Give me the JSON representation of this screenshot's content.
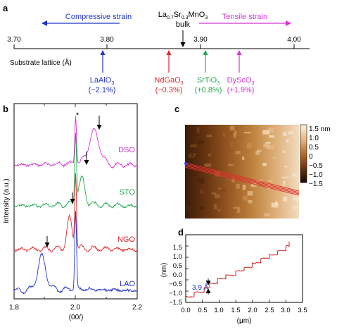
{
  "panels": {
    "a": {
      "letter": "a",
      "compressive_label": "Compressive strain",
      "tensile_label": "Tensile strain",
      "bulk_formula_main": "La",
      "bulk_formula_sub1": "0.7",
      "bulk_formula_mid": "Sr",
      "bulk_formula_sub2": "0.3",
      "bulk_formula_end": "MnO",
      "bulk_formula_sub3": "3",
      "bulk_label": "bulk",
      "axis_label": "Substrate lattice (Å)",
      "ticks": [
        "3.70",
        "3.80",
        "3.90",
        "4.00"
      ],
      "substrates": [
        {
          "name_main": "LaAlO",
          "name_sub": "3",
          "strain": "(−2.1%)",
          "color": "#2233cc"
        },
        {
          "name_main": "NdGaO",
          "name_sub": "3",
          "strain": "(−0.3%)",
          "color": "#e0262a"
        },
        {
          "name_main": "SrTiO",
          "name_sub": "3",
          "strain": "(+0.8%)",
          "color": "#1fa84a"
        },
        {
          "name_main": "DyScO",
          "name_sub": "3",
          "strain": "(+1.9%)",
          "color": "#d633d6"
        }
      ]
    },
    "b": {
      "letter": "b",
      "star": "*",
      "ylabel": "Intensity (a.u.)",
      "xlabel": "(00/)",
      "xticks": [
        "1.8",
        "2.0",
        "2.2"
      ],
      "curve_labels": [
        {
          "text": "DSO",
          "color": "#d633d6"
        },
        {
          "text": "STO",
          "color": "#1fa84a"
        },
        {
          "text": "NGO",
          "color": "#e0262a"
        },
        {
          "text": "LAO",
          "color": "#2233cc"
        }
      ]
    },
    "c": {
      "letter": "c",
      "colorbar_ticks": [
        "1.5 nm",
        "1.0",
        "0.5",
        "0",
        "−0.5",
        "−1.0",
        "−1.5"
      ]
    },
    "d": {
      "letter": "d",
      "ylabel": "(nm)",
      "xlabel": "(μm)",
      "step_label": "3.9 Å",
      "yticks": [
        "1.5",
        "1.0",
        "0.5",
        "0.0",
        "−0.5",
        "−1.0",
        "−1.5"
      ],
      "xticks": [
        "0.0",
        "0.5",
        "1.0",
        "1.5",
        "2.0",
        "2.5",
        "3.0",
        "3.5"
      ]
    }
  },
  "colors": {
    "compressive": "#2233cc",
    "tensile": "#d633d6",
    "profile": "#cc2222"
  },
  "chart_data": [
    {
      "type": "scatter",
      "panel": "a",
      "xlabel": "Substrate lattice (Å)",
      "xlim": [
        3.7,
        4.0
      ],
      "points": [
        {
          "name": "LaAlO3",
          "x": 3.79,
          "strain": "(−2.1%)"
        },
        {
          "name": "NdGaO3",
          "x": 3.86,
          "strain": "(−0.3%)"
        },
        {
          "name": "La0.7Sr0.3MnO3 bulk",
          "x": 3.87
        },
        {
          "name": "SrTiO3",
          "x": 3.905,
          "strain": "(+0.8%)"
        },
        {
          "name": "DyScO3",
          "x": 3.94,
          "strain": "(+1.9%)"
        }
      ]
    },
    {
      "type": "line",
      "panel": "b",
      "xlabel": "(00/)",
      "ylabel": "Intensity (a.u.)",
      "xlim": [
        1.8,
        2.2
      ],
      "series": [
        {
          "name": "DSO",
          "film_peak": 2.06,
          "substrate_peak": 2.0
        },
        {
          "name": "STO",
          "film_peak": 2.02,
          "substrate_peak": 2.0
        },
        {
          "name": "NGO",
          "film_peak": 1.98,
          "substrate_peak": 2.0
        },
        {
          "name": "LAO",
          "film_peak": 1.89,
          "substrate_peak": 2.0
        }
      ]
    },
    {
      "type": "heatmap",
      "panel": "c",
      "zlabel": "nm",
      "zlim": [
        -1.5,
        1.5
      ]
    },
    {
      "type": "line",
      "panel": "d",
      "xlabel": "(μm)",
      "ylabel": "(nm)",
      "xlim": [
        0.0,
        3.5
      ],
      "ylim": [
        -1.5,
        1.5
      ],
      "steps_x": [
        0.0,
        0.25,
        0.55,
        0.72,
        0.95,
        1.2,
        1.5,
        1.75,
        2.0,
        2.25,
        2.5,
        2.75,
        3.0,
        3.1
      ],
      "steps_y": [
        -1.25,
        -1.05,
        -0.85,
        -0.65,
        -0.45,
        -0.3,
        -0.1,
        0.05,
        0.25,
        0.45,
        0.6,
        0.8,
        1.0,
        1.2
      ],
      "step_height": "3.9 Å"
    }
  ]
}
